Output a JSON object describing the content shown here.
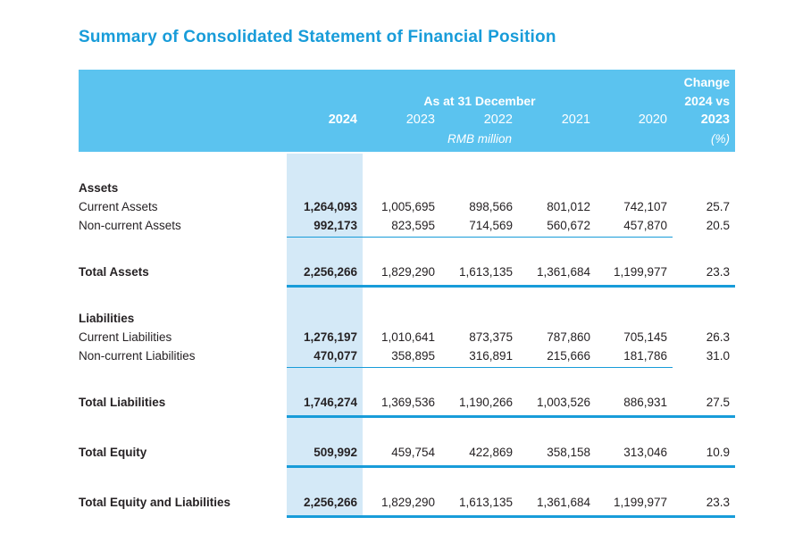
{
  "title": "Summary of Consolidated Statement of Financial Position",
  "colors": {
    "title": "#189CD9",
    "header_bg": "#5BC3EF",
    "header_text": "#FFFFFF",
    "highlight_bg": "#D4E9F7",
    "rule": "#189CD9",
    "text": "#262224"
  },
  "table": {
    "header": {
      "change_label": "Change",
      "change_sub": "2024 vs",
      "change_year": "2023",
      "change_unit": "(%)",
      "period_label": "As at 31 December",
      "unit_label": "RMB million",
      "years": [
        "2024",
        "2023",
        "2022",
        "2021",
        "2020"
      ]
    },
    "rows": [
      {
        "type": "section",
        "label": "Assets"
      },
      {
        "type": "data",
        "label": "Current Assets",
        "values": [
          "1,264,093",
          "1,005,695",
          "898,566",
          "801,012",
          "742,107"
        ],
        "change": "25.7"
      },
      {
        "type": "data",
        "label": "Non-current Assets",
        "values": [
          "992,173",
          "823,595",
          "714,569",
          "560,672",
          "457,870"
        ],
        "change": "20.5"
      },
      {
        "type": "rule-thin"
      },
      {
        "type": "total",
        "label": "Total Assets",
        "values": [
          "2,256,266",
          "1,829,290",
          "1,613,135",
          "1,361,684",
          "1,199,977"
        ],
        "change": "23.3"
      },
      {
        "type": "rule-thick"
      },
      {
        "type": "section",
        "label": "Liabilities"
      },
      {
        "type": "data",
        "label": "Current Liabilities",
        "values": [
          "1,276,197",
          "1,010,641",
          "873,375",
          "787,860",
          "705,145"
        ],
        "change": "26.3"
      },
      {
        "type": "data",
        "label": "Non-current Liabilities",
        "values": [
          "470,077",
          "358,895",
          "316,891",
          "215,666",
          "181,786"
        ],
        "change": "31.0"
      },
      {
        "type": "rule-thin"
      },
      {
        "type": "total",
        "label": "Total Liabilities",
        "values": [
          "1,746,274",
          "1,369,536",
          "1,190,266",
          "1,003,526",
          "886,931"
        ],
        "change": "27.5"
      },
      {
        "type": "rule-thick"
      },
      {
        "type": "total",
        "label": "Total Equity",
        "values": [
          "509,992",
          "459,754",
          "422,869",
          "358,158",
          "313,046"
        ],
        "change": "10.9"
      },
      {
        "type": "rule-thick"
      },
      {
        "type": "total",
        "label": "Total Equity and Liabilities",
        "values": [
          "2,256,266",
          "1,829,290",
          "1,613,135",
          "1,361,684",
          "1,199,977"
        ],
        "change": "23.3"
      },
      {
        "type": "rule-thick"
      }
    ]
  }
}
